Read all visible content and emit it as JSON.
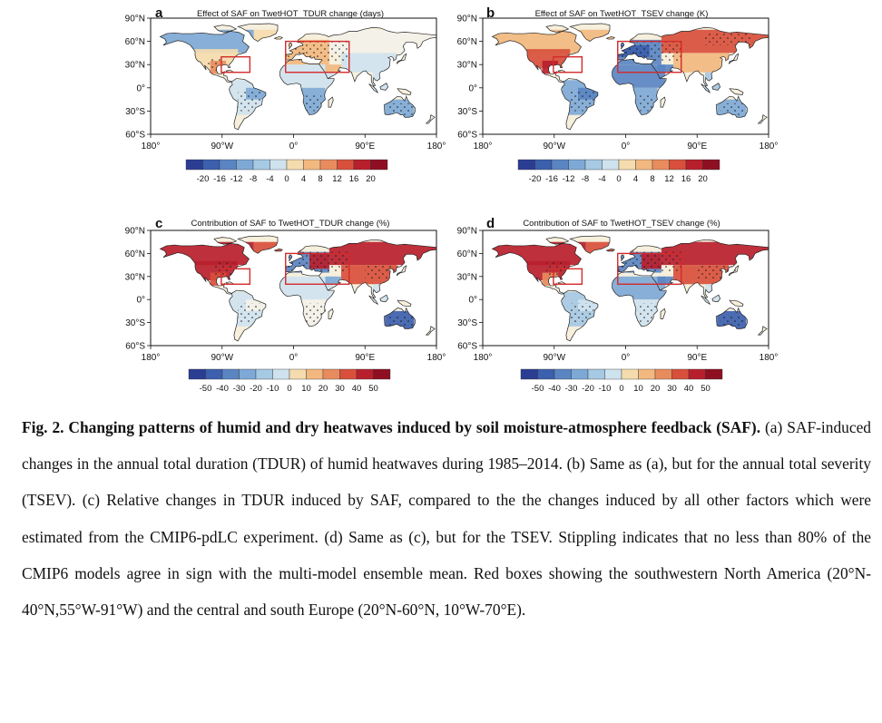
{
  "figure": {
    "panels": [
      {
        "letter": "a",
        "title": "Effect of SAF on TwetHOT_TDUR change (days)",
        "colorbar_ticks": [
          "-20",
          "-16",
          "-12",
          "-8",
          "-4",
          "0",
          "4",
          "8",
          "12",
          "16",
          "20"
        ],
        "pattern": "tdur_abs"
      },
      {
        "letter": "b",
        "title": "Effect of SAF on TwetHOT_TSEV change (K)",
        "colorbar_ticks": [
          "-20",
          "-16",
          "-12",
          "-8",
          "-4",
          "0",
          "4",
          "8",
          "12",
          "16",
          "20"
        ],
        "pattern": "tsev_abs"
      },
      {
        "letter": "c",
        "title": "Contribution of SAF to TwetHOT_TDUR change (%)",
        "colorbar_ticks": [
          "-50",
          "-40",
          "-30",
          "-20",
          "-10",
          "0",
          "10",
          "20",
          "30",
          "40",
          "50"
        ],
        "pattern": "tdur_rel"
      },
      {
        "letter": "d",
        "title": "Contribution of SAF to TwetHOT_TSEV change (%)",
        "colorbar_ticks": [
          "-50",
          "-40",
          "-30",
          "-20",
          "-10",
          "0",
          "10",
          "20",
          "30",
          "40",
          "50"
        ],
        "pattern": "tsev_rel"
      }
    ],
    "lat_labels": [
      "90°N",
      "60°N",
      "30°N",
      "0°",
      "30°S",
      "60°S"
    ],
    "lon_labels": [
      "180°",
      "90°W",
      "0°",
      "90°E",
      "180°"
    ],
    "colors": {
      "diverging": [
        "#2b3d93",
        "#3c5fae",
        "#5a85c3",
        "#7ea9d6",
        "#a6c9e4",
        "#cfe3ef",
        "#f3f1e8",
        "#f5dcae",
        "#f2b87f",
        "#e88c5e",
        "#d8503c",
        "#b81f2c",
        "#8f0f22"
      ],
      "box": "#d42a2a",
      "land_base": "#f6efdc"
    }
  },
  "caption": {
    "lead": "Fig. 2. Changing patterns of humid and dry heatwaves induced by soil moisture-atmosphere feedback (SAF).",
    "body": " (a) SAF-induced changes in the annual total duration (TDUR) of humid heatwaves during 1985–2014. (b) Same as (a), but for the annual total severity (TSEV). (c) Relative changes in TDUR induced by SAF, compared to the the changes induced by all other factors which were estimated from the CMIP6-pdLC experiment. (d) Same as (c), but for the TSEV. Stippling indicates that no less than 80% of the CMIP6 models agree in sign with the multi-model ensemble mean. Red boxes showing the southwestern North America (20°N-40°N,55°W-91°W) and the central and south Europe (20°N-60°N, 10°W-70°E)."
  }
}
